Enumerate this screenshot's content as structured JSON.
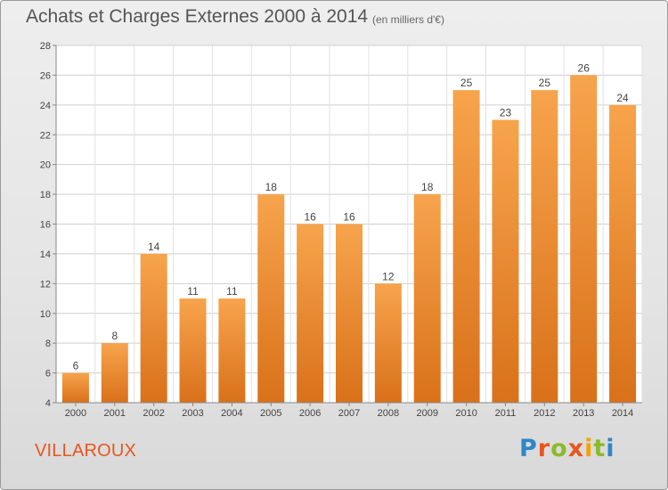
{
  "header": {
    "title": "Achats et Charges Externes 2000 à 2014",
    "unit": "(en milliers d'€)"
  },
  "footer": {
    "place": "VILLAROUX",
    "logo": [
      "P",
      "r",
      "o",
      "x",
      "i",
      "t",
      "i"
    ]
  },
  "colors": {
    "bar_top": "#f7a44c",
    "bar_bottom": "#d9711a",
    "place": "#e8561e"
  },
  "chart_data": {
    "type": "bar",
    "title": "Achats et Charges Externes 2000 à 2014",
    "subtitle": "(en milliers d'€)",
    "categories": [
      "2000",
      "2001",
      "2002",
      "2003",
      "2004",
      "2005",
      "2006",
      "2007",
      "2008",
      "2009",
      "2010",
      "2011",
      "2012",
      "2013",
      "2014"
    ],
    "values": [
      6,
      8,
      14,
      11,
      11,
      18,
      16,
      16,
      12,
      18,
      25,
      23,
      25,
      26,
      24
    ],
    "ylim": [
      4,
      28
    ],
    "yticks": [
      4,
      6,
      8,
      10,
      12,
      14,
      16,
      18,
      20,
      22,
      24,
      26,
      28
    ],
    "grid": true,
    "data_labels": true
  }
}
